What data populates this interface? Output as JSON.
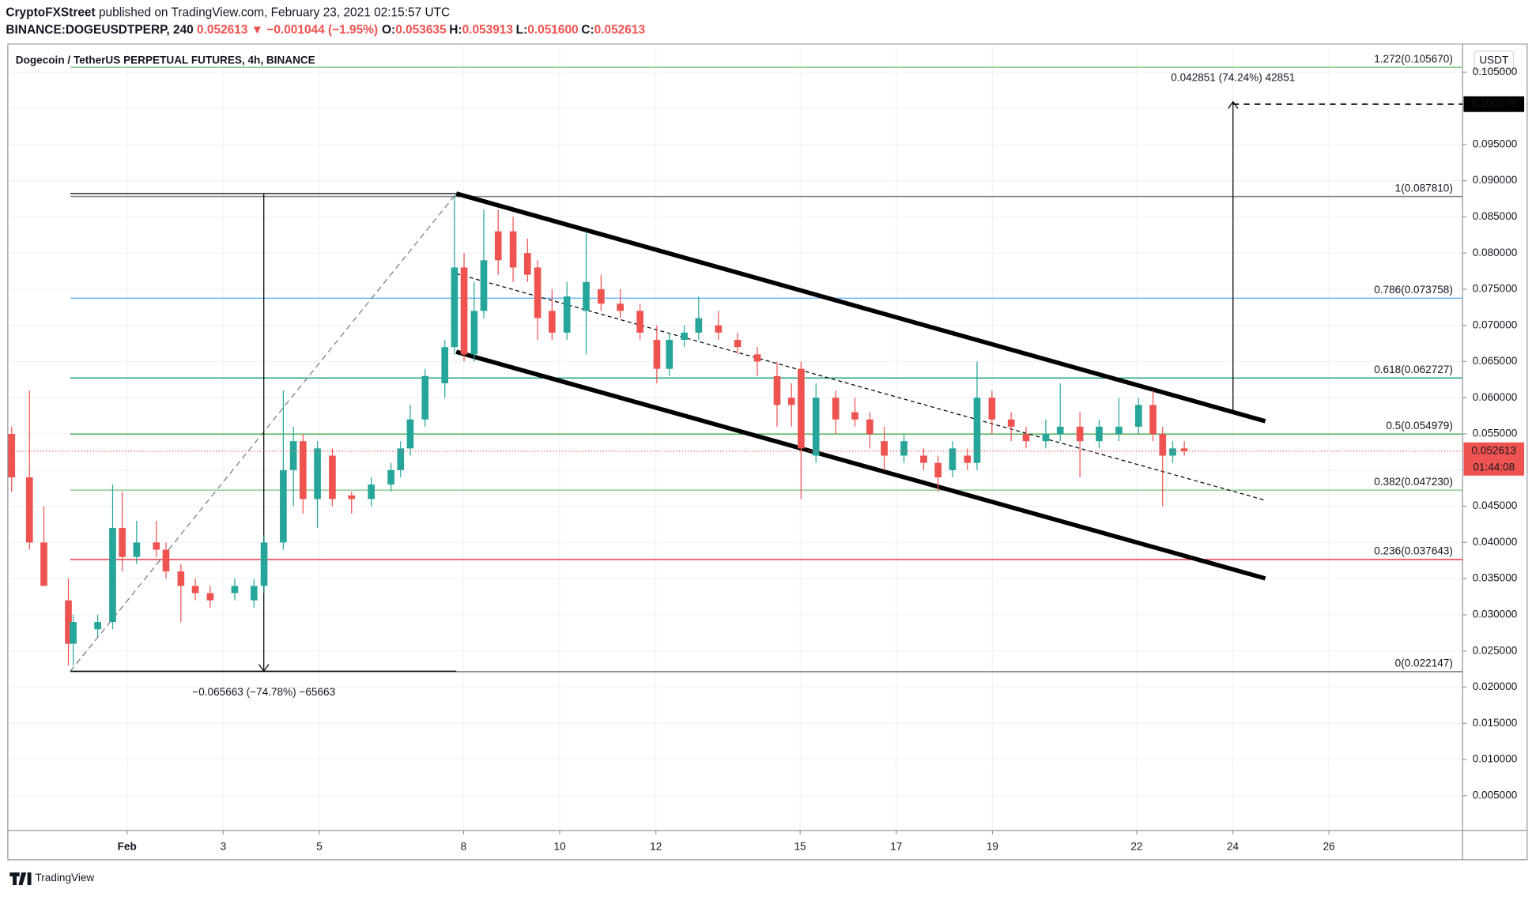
{
  "chart_data": {
    "type": "candlestick",
    "header": {
      "author": "CryptoFXStreet",
      "published": "published on TradingView.com, February 23, 2021 02:15:57 UTC",
      "symbol": "BINANCE:DOGEUSDTPERP, 240",
      "last": "0.052613",
      "change": "▼ −0.001044 (−1.95%)",
      "ohlc": [
        {
          "key": "O:",
          "value": "0.053635"
        },
        {
          "key": "H:",
          "value": "0.053913"
        },
        {
          "key": "L:",
          "value": "0.051600"
        },
        {
          "key": "C:",
          "value": "0.052613"
        }
      ]
    },
    "title": "Dogecoin / TetherUS PERPETUAL FUTURES, 4h, BINANCE",
    "currency": "USDT",
    "footer": "TradingView",
    "up_color": "#26a69a",
    "down_color": "#ef5350",
    "grid": true,
    "x": [
      -1.4,
      -1.03,
      -0.73,
      -0.22,
      -0.12,
      0.39,
      0.7,
      0.9,
      1.2,
      1.61,
      1.81,
      2.12,
      2.42,
      2.73,
      3.24,
      3.64,
      3.85,
      4.25,
      4.46,
      4.66,
      4.96,
      5.27,
      5.67,
      6.08,
      6.49,
      6.69,
      6.89,
      7.2,
      7.61,
      7.81,
      8.01,
      8.22,
      8.42,
      8.72,
      9.03,
      9.33,
      9.54,
      9.84,
      10.15,
      10.55,
      10.86,
      11.26,
      11.67,
      12.02,
      12.28,
      12.59,
      12.89,
      13.3,
      13.7,
      14.11,
      14.52,
      14.82,
      15.02,
      15.33,
      15.74,
      16.14,
      16.45,
      16.75,
      17.16,
      17.57,
      17.87,
      18.17,
      18.48,
      18.68,
      18.99,
      19.39,
      19.7,
      20.11,
      20.41,
      20.82,
      21.22,
      21.63,
      22.04,
      22.34,
      22.54,
      22.75,
      22.99
    ],
    "open": [
      0.055,
      0.049,
      0.04,
      0.032,
      0.026,
      0.028,
      0.029,
      0.042,
      0.038,
      0.04,
      0.039,
      0.036,
      0.034,
      0.033,
      0.033,
      0.032,
      0.034,
      0.04,
      0.05,
      0.054,
      0.046,
      0.052,
      0.0465,
      0.046,
      0.048,
      0.05,
      0.053,
      0.057,
      0.062,
      0.067,
      0.078,
      0.066,
      0.072,
      0.083,
      0.083,
      0.08,
      0.078,
      0.072,
      0.069,
      0.072,
      0.075,
      0.073,
      0.072,
      0.068,
      0.064,
      0.068,
      0.069,
      0.07,
      0.068,
      0.066,
      0.063,
      0.06,
      0.064,
      0.052,
      0.06,
      0.058,
      0.057,
      0.054,
      0.052,
      0.052,
      0.051,
      0.05,
      0.052,
      0.051,
      0.06,
      0.057,
      0.055,
      0.054,
      0.055,
      0.056,
      0.054,
      0.055,
      0.056,
      0.059,
      0.055,
      0.052,
      0.053
    ],
    "high": [
      0.056,
      0.061,
      0.045,
      0.035,
      0.03,
      0.03,
      0.048,
      0.047,
      0.043,
      0.043,
      0.04,
      0.037,
      0.035,
      0.034,
      0.035,
      0.035,
      0.041,
      0.061,
      0.056,
      0.055,
      0.054,
      0.053,
      0.047,
      0.049,
      0.051,
      0.054,
      0.059,
      0.064,
      0.068,
      0.088,
      0.08,
      0.076,
      0.086,
      0.086,
      0.085,
      0.082,
      0.079,
      0.075,
      0.076,
      0.083,
      0.077,
      0.075,
      0.073,
      0.07,
      0.069,
      0.07,
      0.074,
      0.072,
      0.069,
      0.067,
      0.065,
      0.062,
      0.065,
      0.062,
      0.061,
      0.06,
      0.058,
      0.056,
      0.055,
      0.053,
      0.052,
      0.054,
      0.053,
      0.065,
      0.061,
      0.058,
      0.056,
      0.057,
      0.062,
      0.058,
      0.057,
      0.06,
      0.06,
      0.061,
      0.056,
      0.054,
      0.054
    ],
    "low": [
      0.047,
      0.039,
      0.034,
      0.023,
      0.023,
      0.027,
      0.028,
      0.036,
      0.037,
      0.038,
      0.035,
      0.029,
      0.032,
      0.031,
      0.032,
      0.031,
      0.033,
      0.039,
      0.045,
      0.044,
      0.042,
      0.045,
      0.044,
      0.045,
      0.047,
      0.049,
      0.052,
      0.056,
      0.06,
      0.066,
      0.065,
      0.065,
      0.071,
      0.077,
      0.076,
      0.076,
      0.068,
      0.068,
      0.068,
      0.066,
      0.072,
      0.071,
      0.068,
      0.062,
      0.063,
      0.067,
      0.068,
      0.068,
      0.066,
      0.063,
      0.056,
      0.056,
      0.046,
      0.051,
      0.055,
      0.056,
      0.053,
      0.05,
      0.051,
      0.05,
      0.047,
      0.049,
      0.05,
      0.05,
      0.055,
      0.054,
      0.053,
      0.053,
      0.054,
      0.049,
      0.053,
      0.054,
      0.055,
      0.054,
      0.045,
      0.051,
      0.052
    ],
    "close": [
      0.049,
      0.04,
      0.034,
      0.026,
      0.029,
      0.029,
      0.042,
      0.038,
      0.04,
      0.039,
      0.036,
      0.034,
      0.033,
      0.032,
      0.034,
      0.034,
      0.04,
      0.05,
      0.054,
      0.046,
      0.053,
      0.046,
      0.046,
      0.048,
      0.05,
      0.053,
      0.057,
      0.063,
      0.067,
      0.078,
      0.066,
      0.072,
      0.079,
      0.079,
      0.078,
      0.077,
      0.071,
      0.069,
      0.074,
      0.076,
      0.073,
      0.072,
      0.069,
      0.064,
      0.068,
      0.069,
      0.071,
      0.069,
      0.067,
      0.065,
      0.059,
      0.059,
      0.053,
      0.06,
      0.057,
      0.057,
      0.055,
      0.052,
      0.054,
      0.051,
      0.049,
      0.053,
      0.051,
      0.06,
      0.057,
      0.056,
      0.054,
      0.055,
      0.056,
      0.054,
      0.056,
      0.056,
      0.059,
      0.055,
      0.052,
      0.053,
      0.052613
    ],
    "last_price": {
      "value": 0.052613,
      "label": "0.052613",
      "countdown": "01:44:08",
      "color": "#ef5350"
    },
    "target": {
      "value": 0.100575,
      "label": "0.100575",
      "measure": "0.042851 (74.24%) 42851"
    },
    "drop_measure": "−0.065663 (−74.78%) −65663",
    "fib_levels": [
      {
        "price": 0.10567,
        "label": "1.272(0.105670)",
        "color": "#81c784"
      },
      {
        "price": 0.08781,
        "label": "1(0.087810)",
        "color": "#787b86"
      },
      {
        "price": 0.073758,
        "label": "0.786(0.073758)",
        "color": "#64b5f6"
      },
      {
        "price": 0.062727,
        "label": "0.618(0.062727)",
        "color": "#089981"
      },
      {
        "price": 0.054979,
        "label": "0.5(0.054979)",
        "color": "#4caf50"
      },
      {
        "price": 0.04723,
        "label": "0.382(0.047230)",
        "color": "#81c784"
      },
      {
        "price": 0.037643,
        "label": "0.236(0.037643)",
        "color": "#f23645"
      },
      {
        "price": 0.022147,
        "label": "0(0.022147)",
        "color": "#787b86"
      }
    ],
    "xlim": [
      -1.48,
      28.78
    ],
    "xticks": [
      {
        "value": 1,
        "label": "Feb"
      },
      3,
      5,
      8,
      10,
      12,
      15,
      17,
      19,
      22,
      24,
      26
    ],
    "ylim": [
      0.0002,
      0.1082
    ],
    "yticks": [
      {
        "value": 0.005,
        "label": "0.005000"
      },
      {
        "value": 0.01,
        "label": "0.010000"
      },
      {
        "value": 0.015,
        "label": "0.015000"
      },
      {
        "value": 0.02,
        "label": "0.020000"
      },
      {
        "value": 0.025,
        "label": "0.025000"
      },
      {
        "value": 0.03,
        "label": "0.030000"
      },
      {
        "value": 0.035,
        "label": "0.035000"
      },
      {
        "value": 0.04,
        "label": "0.040000"
      },
      {
        "value": 0.045,
        "label": "0.045000"
      },
      {
        "value": 0.05,
        "label": "0.050000"
      },
      {
        "value": 0.055,
        "label": "0.055000"
      },
      {
        "value": 0.06,
        "label": "0.060000"
      },
      {
        "value": 0.065,
        "label": "0.065000"
      },
      {
        "value": 0.07,
        "label": "0.070000"
      },
      {
        "value": 0.075,
        "label": "0.075000"
      },
      {
        "value": 0.08,
        "label": "0.080000"
      },
      {
        "value": 0.085,
        "label": "0.085000"
      },
      {
        "value": 0.09,
        "label": "0.090000"
      },
      {
        "value": 0.095,
        "label": "0.095000"
      },
      {
        "value": 0.1,
        "label": "0.100000"
      },
      {
        "value": 0.105,
        "label": "0.105000"
      }
    ]
  }
}
